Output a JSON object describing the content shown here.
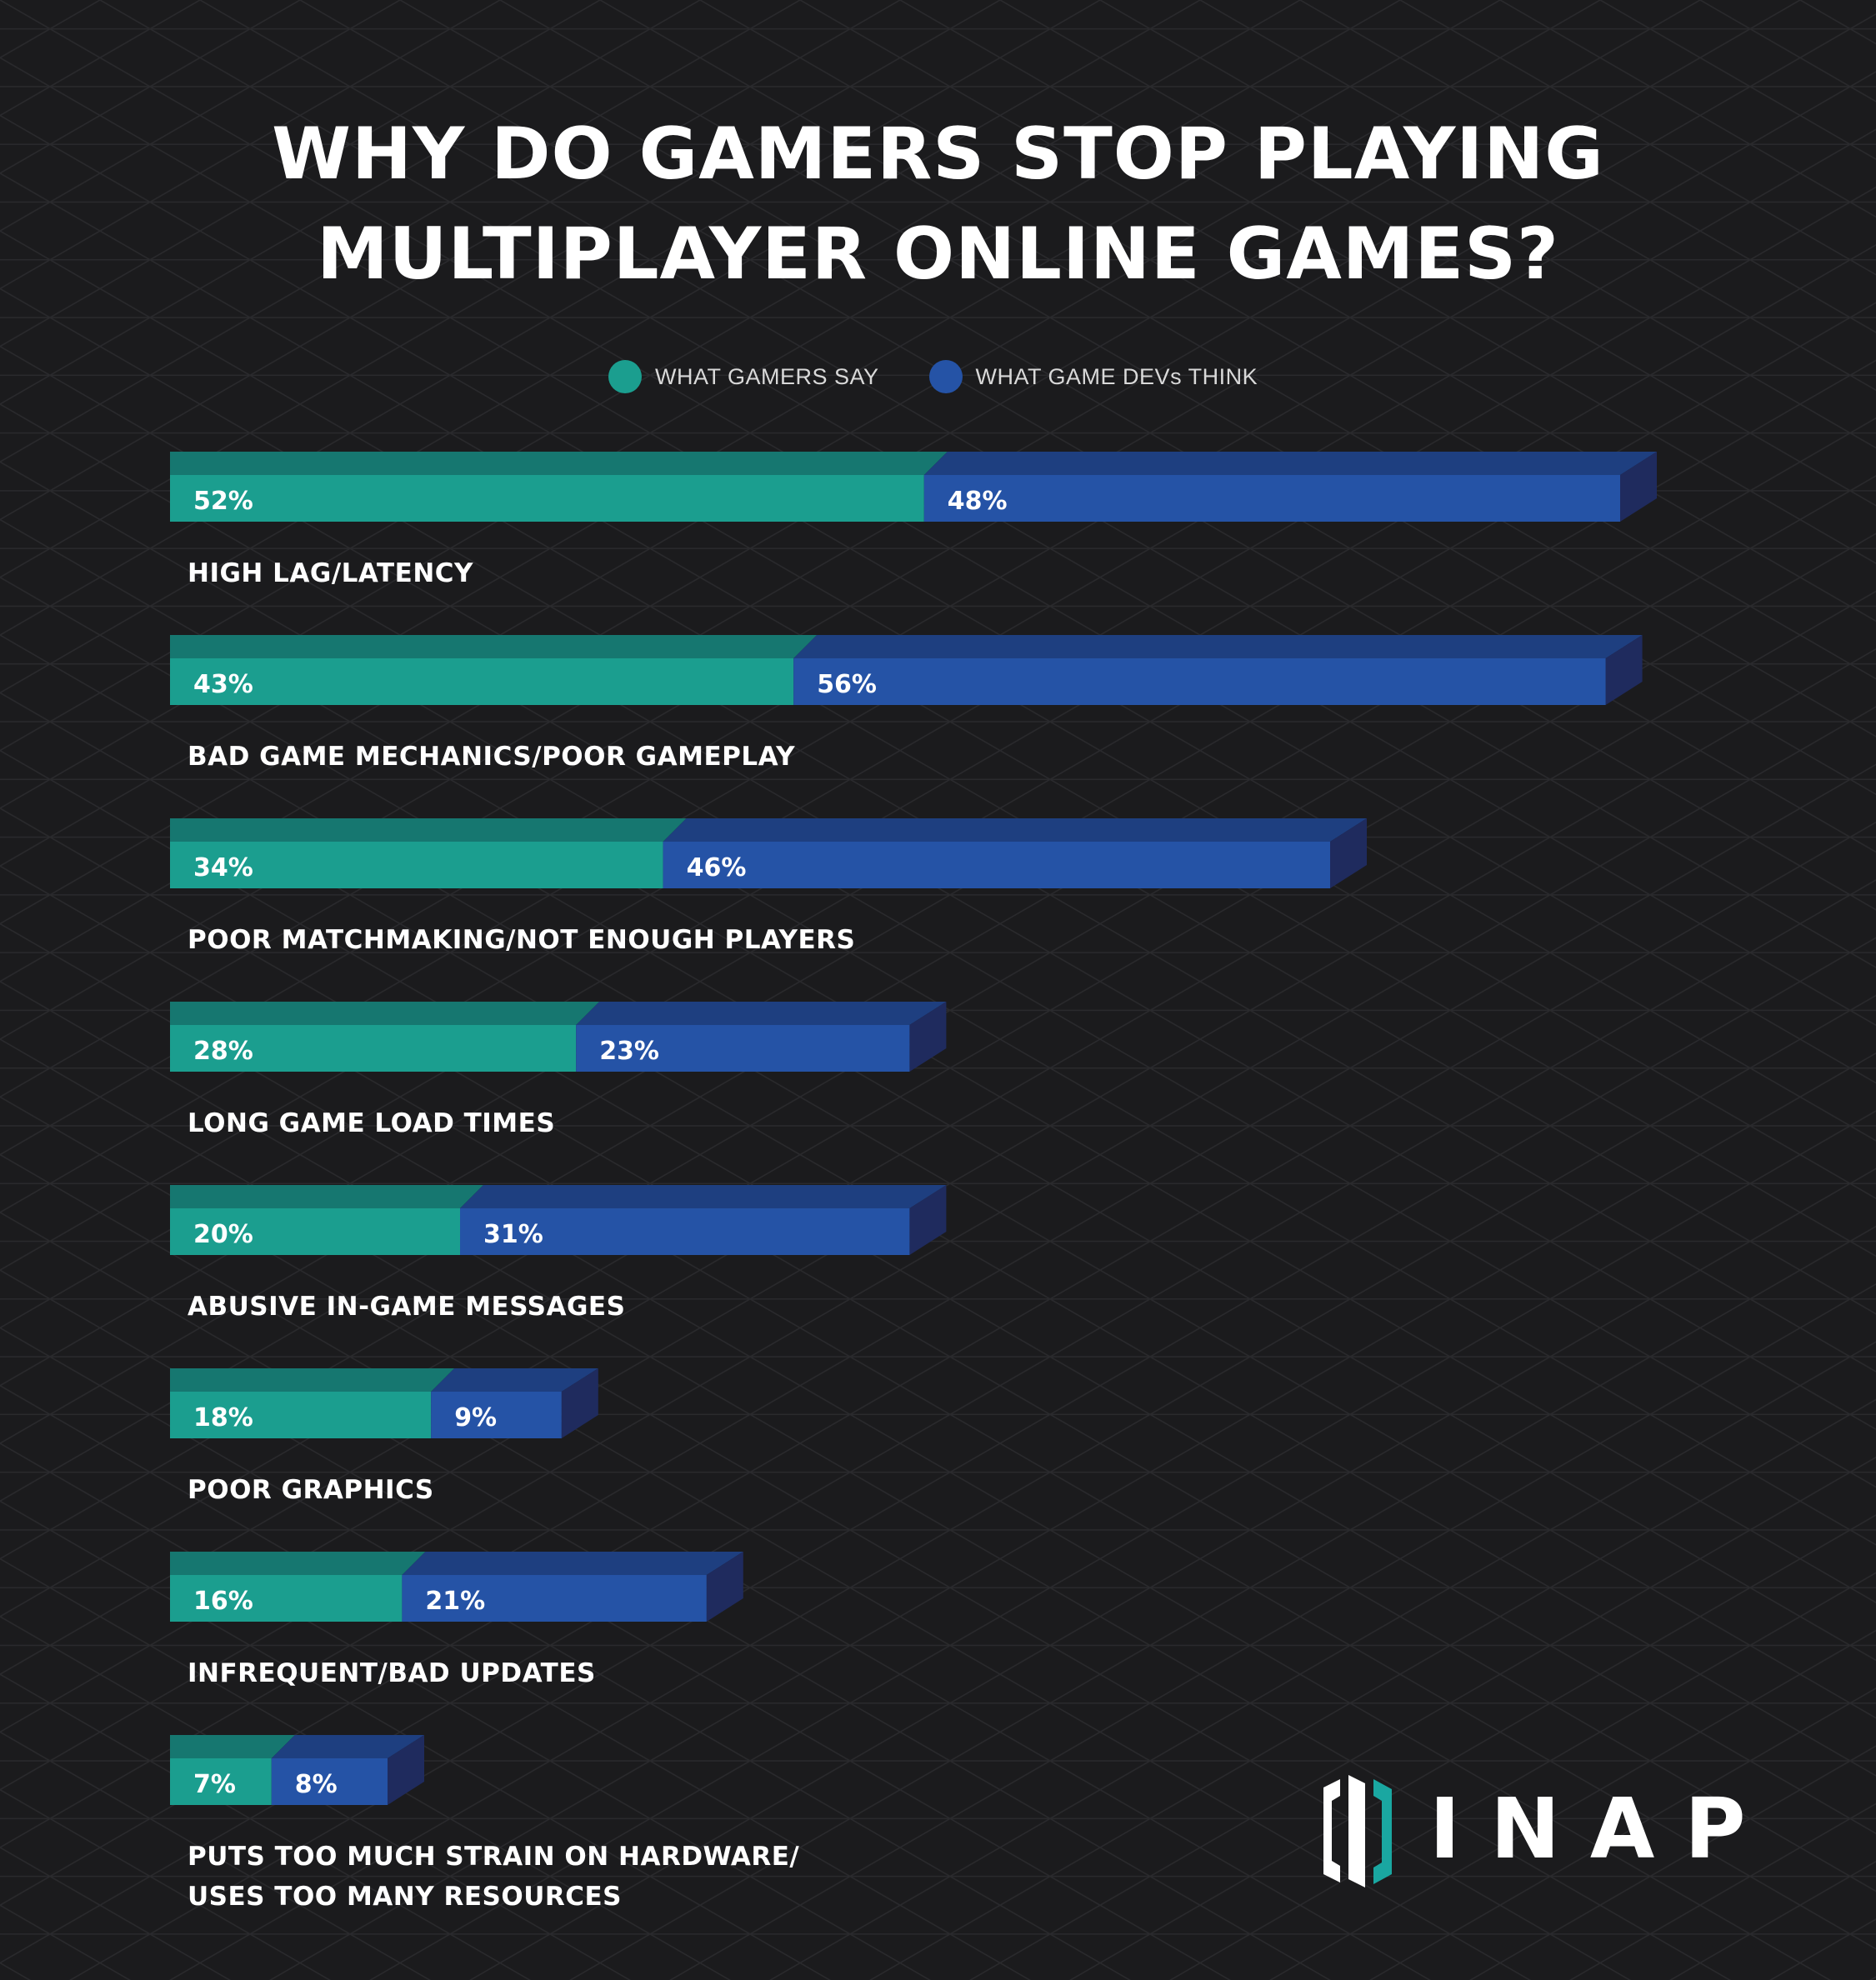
{
  "title": {
    "line1": "WHY DO GAMERS STOP PLAYING",
    "line2": "MULTIPLAYER ONLINE GAMES?"
  },
  "legend": {
    "gamers": "WHAT GAMERS SAY",
    "devs": "WHAT GAME DEVs THINK"
  },
  "colors": {
    "background": "#1b1b1d",
    "gamers": "#1b9e8f",
    "gamers_top": "#167770",
    "devs": "#2553a6",
    "devs_top": "#1e3f80",
    "side": "#1f2b5e"
  },
  "chart_data": {
    "type": "bar",
    "orientation": "horizontal",
    "stacked": true,
    "categories": [
      [
        "HIGH LAG/LATENCY"
      ],
      [
        "BAD GAME MECHANICS/POOR GAMEPLAY"
      ],
      [
        "POOR MATCHMAKING/NOT ENOUGH PLAYERS"
      ],
      [
        "LONG GAME LOAD TIMES"
      ],
      [
        "ABUSIVE IN-GAME MESSAGES"
      ],
      [
        "POOR GRAPHICS"
      ],
      [
        "INFREQUENT/BAD UPDATES"
      ],
      [
        "PUTS TOO MUCH STRAIN ON HARDWARE/",
        "USES TOO MANY RESOURCES"
      ]
    ],
    "series": [
      {
        "name": "WHAT GAMERS SAY",
        "values": [
          52,
          43,
          34,
          28,
          20,
          18,
          16,
          7
        ],
        "labels": [
          "52%",
          "43%",
          "34%",
          "28%",
          "20%",
          "18%",
          "16%",
          "7%"
        ]
      },
      {
        "name": "WHAT GAME DEVs THINK",
        "values": [
          48,
          56,
          46,
          23,
          31,
          9,
          21,
          8
        ],
        "labels": [
          "48%",
          "56%",
          "46%",
          "23%",
          "31%",
          "9%",
          "21%",
          "8%"
        ]
      }
    ],
    "unit": "%",
    "grid": false,
    "legend_position": "top-center"
  },
  "logo": {
    "text": "INAP"
  }
}
